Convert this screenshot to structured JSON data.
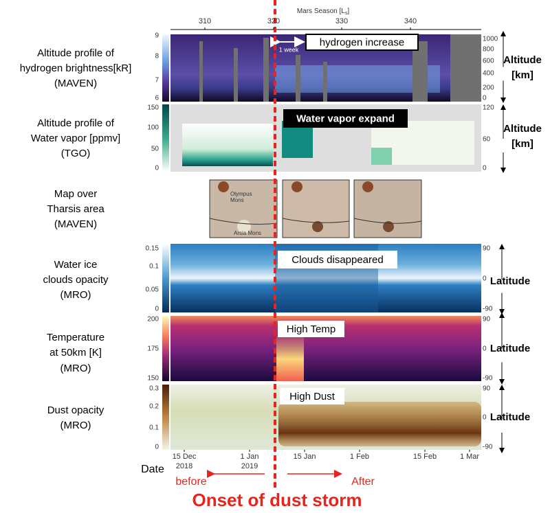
{
  "top_axis": {
    "label": [
      "Mars Season [L",
      "s",
      "]"
    ],
    "ticks": [
      "310",
      "320",
      "330",
      "340"
    ]
  },
  "panels": [
    {
      "title": [
        "Altitude profile of",
        "hydrogen brightness[kR]",
        "(MAVEN)"
      ],
      "colorbar_ticks": [
        "9",
        "8",
        "7",
        "6"
      ],
      "right_ticks": [
        "1000",
        "800",
        "600",
        "400",
        "200",
        "0"
      ],
      "right_label": [
        "Altitude",
        "[km]"
      ],
      "annotation": "hydrogen increase"
    },
    {
      "title": [
        "Altitude profile of",
        "Water vapor [ppmv]",
        "(TGO)"
      ],
      "colorbar_ticks": [
        "150",
        "100",
        "50",
        "0"
      ],
      "right_ticks": [
        "120",
        "60",
        "0"
      ],
      "right_label": [
        "Altitude",
        "[km]"
      ],
      "annotation": "Water vapor expand"
    },
    {
      "title": [
        "Water ice",
        "clouds opacity",
        "(MRO)"
      ],
      "colorbar_ticks": [
        "0.15",
        "0.1",
        "0.05",
        "0"
      ],
      "right_ticks": [
        "90",
        "0",
        "-90"
      ],
      "right_label": [
        "Latitude"
      ],
      "annotation": "Clouds disappeared"
    },
    {
      "title": [
        "Temperature",
        "at 50km [K]",
        "(MRO)"
      ],
      "colorbar_ticks": [
        "200",
        "175",
        "150"
      ],
      "right_ticks": [
        "90",
        "0",
        "-90"
      ],
      "right_label": [
        "Latitude"
      ],
      "annotation": "High Temp"
    },
    {
      "title": [
        "Dust opacity",
        "(MRO)"
      ],
      "colorbar_ticks": [
        "0.3",
        "0.2",
        "0.1",
        "0"
      ],
      "right_ticks": [
        "90",
        "0",
        "-90"
      ],
      "right_label": [
        "Latitude"
      ],
      "annotation": "High Dust"
    }
  ],
  "maps": {
    "title": [
      "Map over",
      "Tharsis area",
      "(MAVEN)"
    ],
    "labels": [
      "Olympus",
      "Mons",
      "Arsia Mons"
    ]
  },
  "one_week": "1 week",
  "dates": [
    {
      "day": "15 Dec",
      "year": "2018"
    },
    {
      "day": "1 Jan",
      "year": "2019"
    },
    {
      "day": "15 Jan"
    },
    {
      "day": "1 Feb"
    },
    {
      "day": "15 Feb"
    },
    {
      "day": "1 Mar"
    }
  ],
  "footer": {
    "date_label": "Date",
    "before": "before",
    "after": "After",
    "onset": "Onset of dust storm"
  }
}
